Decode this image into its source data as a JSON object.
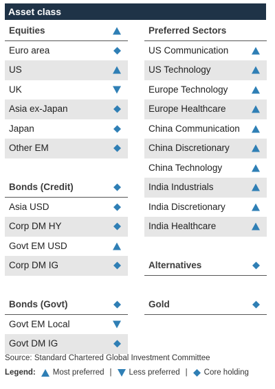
{
  "title": "Asset class",
  "left_column": [
    {
      "label": "Equities",
      "symbol": "up",
      "kind": "header"
    },
    {
      "label": "Euro area",
      "symbol": "core",
      "kind": "row"
    },
    {
      "label": "US",
      "symbol": "up",
      "kind": "shade"
    },
    {
      "label": "UK",
      "symbol": "down",
      "kind": "row"
    },
    {
      "label": "Asia ex-Japan",
      "symbol": "core",
      "kind": "shade"
    },
    {
      "label": "Japan",
      "symbol": "core",
      "kind": "row"
    },
    {
      "label": "Other EM",
      "symbol": "core",
      "kind": "shade"
    },
    {
      "label": "",
      "symbol": "",
      "kind": "spacer"
    },
    {
      "label": "Bonds (Credit)",
      "symbol": "core",
      "kind": "header"
    },
    {
      "label": "Asia USD",
      "symbol": "core",
      "kind": "row"
    },
    {
      "label": "Corp DM HY",
      "symbol": "core",
      "kind": "shade"
    },
    {
      "label": "Govt EM USD",
      "symbol": "up",
      "kind": "row"
    },
    {
      "label": "Corp DM IG",
      "symbol": "core",
      "kind": "shade"
    },
    {
      "label": "",
      "symbol": "",
      "kind": "spacer"
    },
    {
      "label": "Bonds (Govt)",
      "symbol": "core",
      "kind": "header"
    },
    {
      "label": "Govt EM Local",
      "symbol": "down",
      "kind": "row"
    },
    {
      "label": "Govt DM IG",
      "symbol": "core",
      "kind": "shade"
    }
  ],
  "right_column": [
    {
      "label": "Preferred Sectors",
      "symbol": "",
      "kind": "header"
    },
    {
      "label": "US Communication",
      "symbol": "up",
      "kind": "row"
    },
    {
      "label": "US Technology",
      "symbol": "up",
      "kind": "shade"
    },
    {
      "label": "Europe Technology",
      "symbol": "up",
      "kind": "row"
    },
    {
      "label": "Europe Healthcare",
      "symbol": "up",
      "kind": "shade"
    },
    {
      "label": "China Communication",
      "symbol": "up",
      "kind": "row"
    },
    {
      "label": "China Discretionary",
      "symbol": "up",
      "kind": "shade"
    },
    {
      "label": "China Technology",
      "symbol": "up",
      "kind": "row"
    },
    {
      "label": "India Industrials",
      "symbol": "up",
      "kind": "shade"
    },
    {
      "label": "India Discretionary",
      "symbol": "up",
      "kind": "row"
    },
    {
      "label": "India Healthcare",
      "symbol": "up",
      "kind": "shade"
    },
    {
      "label": "",
      "symbol": "",
      "kind": "spacer"
    },
    {
      "label": "Alternatives",
      "symbol": "core",
      "kind": "header"
    },
    {
      "label": "",
      "symbol": "",
      "kind": "spacer"
    },
    {
      "label": "Gold",
      "symbol": "core",
      "kind": "header"
    }
  ],
  "source": "Source: Standard Chartered Global Investment Committee",
  "legend": {
    "lead": "Legend:",
    "most_preferred": "Most preferred",
    "less_preferred": "Less preferred",
    "core_holding": "Core holding",
    "separator": "|"
  },
  "colors": {
    "banner": "#1f3347",
    "symbol": "#2f7fb5",
    "row_shade": "#e6e6e6"
  }
}
